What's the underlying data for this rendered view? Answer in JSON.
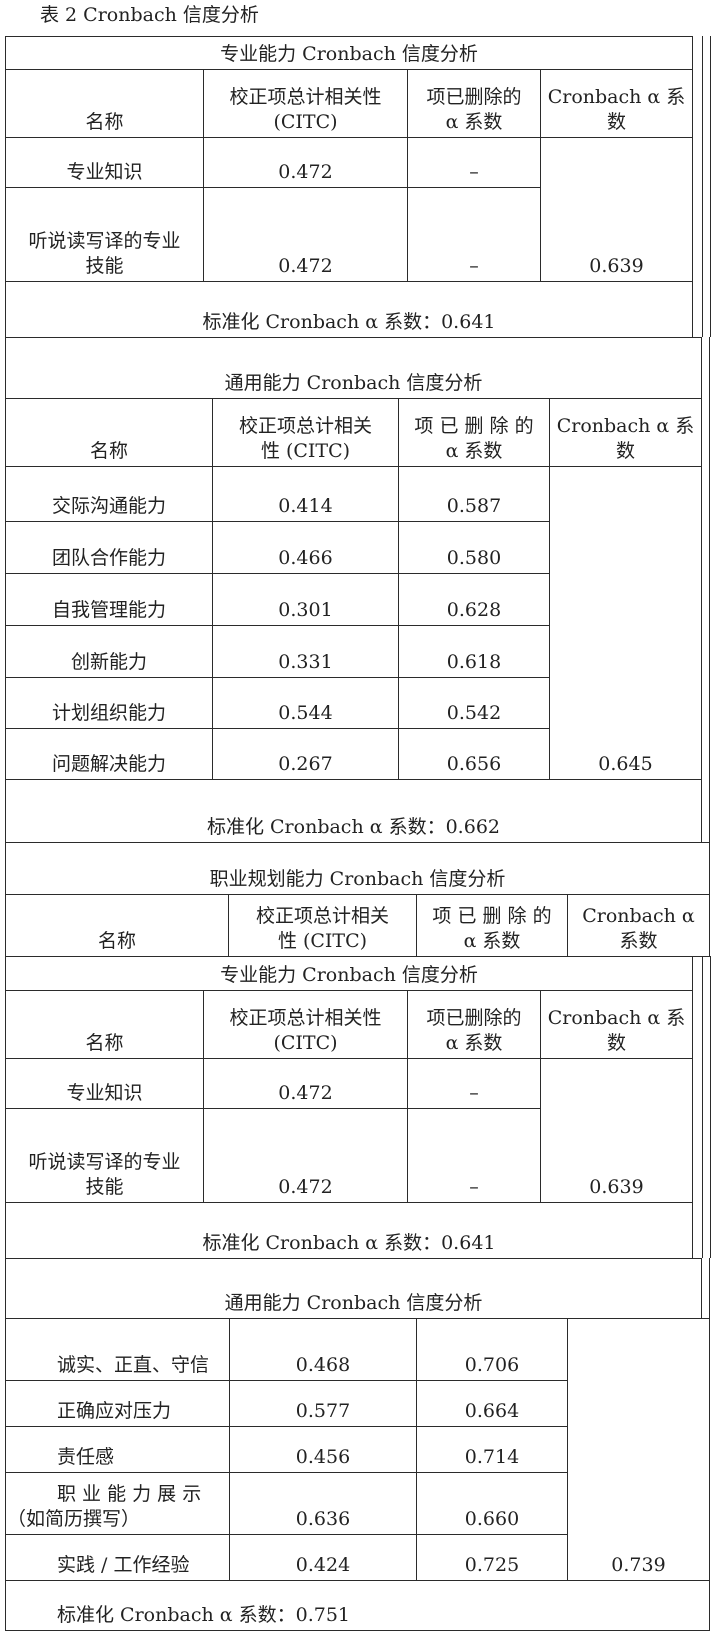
{
  "caption": "表 2 Cronbach 信度分析",
  "sections": [
    {
      "title": "专业能力 Cronbach 信度分析",
      "headers": [
        "名称",
        "校正项总计相关性\n(CITC)",
        "项已删除的\nα 系数",
        "Cronbach α 系\n数"
      ],
      "rows": [
        {
          "name": "专业知识",
          "citc": "0.472",
          "deleted": "–"
        },
        {
          "name": "听说读写译的专业\n技能",
          "citc": "0.472",
          "deleted": "–"
        }
      ],
      "alpha": "0.639",
      "standardized": "标准化 Cronbach α 系数：0.641"
    },
    {
      "title": "通用能力 Cronbach 信度分析",
      "headers": [
        "名称",
        "校正项总计相关\n性 (CITC)",
        "项 已 删 除 的\nα 系数",
        "Cronbach α 系\n数"
      ],
      "rows": [
        {
          "name": "交际沟通能力",
          "citc": "0.414",
          "deleted": "0.587"
        },
        {
          "name": "团队合作能力",
          "citc": "0.466",
          "deleted": "0.580"
        },
        {
          "name": "自我管理能力",
          "citc": "0.301",
          "deleted": "0.628"
        },
        {
          "name": "创新能力",
          "citc": "0.331",
          "deleted": "0.618"
        },
        {
          "name": "计划组织能力",
          "citc": "0.544",
          "deleted": "0.542"
        },
        {
          "name": "问题解决能力",
          "citc": "0.267",
          "deleted": "0.656"
        }
      ],
      "alpha": "0.645",
      "standardized": "标准化 Cronbach α 系数：0.662"
    },
    {
      "title": "职业规划能力 Cronbach 信度分析",
      "headers": [
        "名称",
        "校正项总计相关\n性 (CITC)",
        "项 已 删 除 的\nα 系数",
        "Cronbach  α\n系数"
      ]
    },
    {
      "title": "专业能力 Cronbach 信度分析",
      "headers": [
        "名称",
        "校正项总计相关性\n(CITC)",
        "项已删除的\nα 系数",
        "Cronbach α 系\n数"
      ],
      "rows": [
        {
          "name": "专业知识",
          "citc": "0.472",
          "deleted": "–"
        },
        {
          "name": "听说读写译的专业\n技能",
          "citc": "0.472",
          "deleted": "–"
        }
      ],
      "alpha": "0.639",
      "standardized": "标准化 Cronbach α 系数：0.641"
    },
    {
      "title": "通用能力 Cronbach 信度分析",
      "rows": [
        {
          "name": "诚实、正直、守信",
          "citc": "0.468",
          "deleted": "0.706"
        },
        {
          "name": "正确应对压力",
          "citc": "0.577",
          "deleted": "0.664"
        },
        {
          "name": "责任感",
          "citc": "0.456",
          "deleted": "0.714"
        },
        {
          "name": "职 业 能 力 展 示（如简历撰写）",
          "citc": "0.636",
          "deleted": "0.660"
        },
        {
          "name": "实践 / 工作经验",
          "citc": "0.424",
          "deleted": "0.725"
        }
      ],
      "alpha": "0.739",
      "standardized": "标准化 Cronbach α 系数：0.751"
    }
  ]
}
